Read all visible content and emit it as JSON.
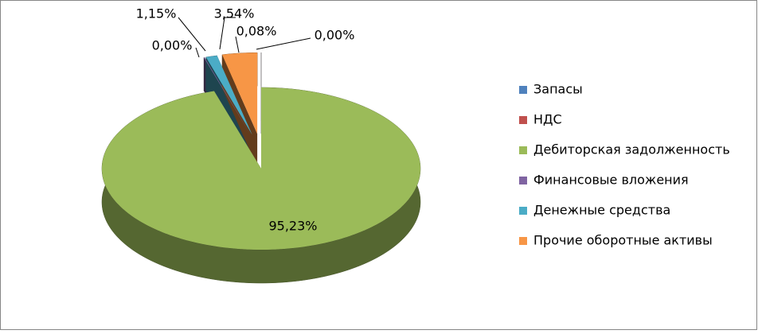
{
  "chart_data": {
    "type": "pie",
    "categories": [
      "Запасы",
      "НДС",
      "Дебиторская задолженность",
      "Финансовые вложения",
      "Денежные средства",
      "Прочие оборотные активы"
    ],
    "values": [
      0,
      0,
      95.23,
      0.08,
      1.15,
      3.54
    ],
    "value_labels": [
      "0,00%",
      "0,00%",
      "95,23%",
      "0,08%",
      "1,15%",
      "3,54%"
    ],
    "colors": [
      "#4f81bd",
      "#c0504d",
      "#9bbb59",
      "#8064a2",
      "#4bacc6",
      "#f79646"
    ]
  }
}
